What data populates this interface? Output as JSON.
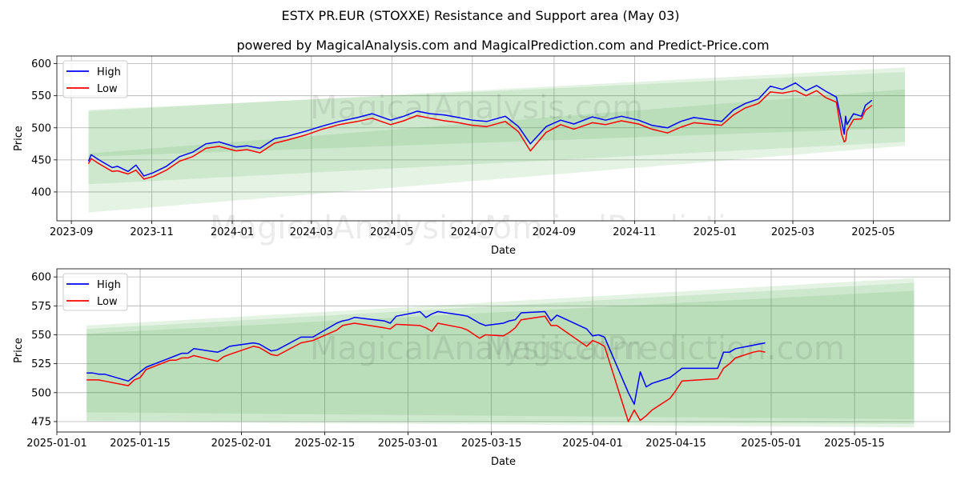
{
  "title": "ESTX PR.EUR (STOXXE) Resistance and Support area (May 03)",
  "subtitle": "powered by MagicalAnalysis.com and MagicalPrediction.com and Predict-Price.com",
  "watermarks": [
    "MagicalAnalysis.com",
    "MagicalPrediction.com"
  ],
  "colors": {
    "high": "#0000ff",
    "low": "#ff0000",
    "band": "#2ca02c"
  },
  "chart_data": [
    {
      "type": "line",
      "xlabel": "Date",
      "ylabel": "Price",
      "ylim": [
        355,
        612
      ],
      "xlim": [
        "2023-08-21",
        "2025-06-28"
      ],
      "grid": true,
      "legend": [
        "High",
        "Low"
      ],
      "legend_position": "upper-left",
      "xticks": [
        "2023-09",
        "2023-11",
        "2024-01",
        "2024-03",
        "2024-05",
        "2024-07",
        "2024-09",
        "2024-11",
        "2025-01",
        "2025-03",
        "2025-05"
      ],
      "yticks": [
        400,
        450,
        500,
        550,
        600
      ],
      "series": [
        {
          "name": "High",
          "x": [
            "2023-09-14",
            "2023-09-16",
            "2023-09-22",
            "2023-10-02",
            "2023-10-06",
            "2023-10-14",
            "2023-10-20",
            "2023-10-26",
            "2023-11-02",
            "2023-11-12",
            "2023-11-22",
            "2023-12-02",
            "2023-12-12",
            "2023-12-22",
            "2024-01-04",
            "2024-01-12",
            "2024-01-22",
            "2024-02-02",
            "2024-02-12",
            "2024-02-26",
            "2024-03-08",
            "2024-03-22",
            "2024-04-05",
            "2024-04-16",
            "2024-04-30",
            "2024-05-10",
            "2024-05-20",
            "2024-05-30",
            "2024-06-10",
            "2024-06-18",
            "2024-07-01",
            "2024-07-12",
            "2024-07-26",
            "2024-08-05",
            "2024-08-14",
            "2024-08-26",
            "2024-09-06",
            "2024-09-16",
            "2024-09-30",
            "2024-10-10",
            "2024-10-22",
            "2024-11-04",
            "2024-11-14",
            "2024-11-26",
            "2024-12-06",
            "2024-12-16",
            "2025-01-06",
            "2025-01-15",
            "2025-01-24",
            "2025-02-03",
            "2025-02-12",
            "2025-02-21",
            "2025-03-03",
            "2025-03-11",
            "2025-03-19",
            "2025-03-26",
            "2025-04-03",
            "2025-04-07",
            "2025-04-09",
            "2025-04-10",
            "2025-04-11",
            "2025-04-16",
            "2025-04-22",
            "2025-04-25",
            "2025-04-30"
          ],
          "values": [
            448,
            458,
            450,
            438,
            440,
            432,
            442,
            425,
            430,
            440,
            455,
            462,
            475,
            478,
            470,
            472,
            468,
            483,
            487,
            495,
            502,
            510,
            516,
            522,
            512,
            518,
            526,
            522,
            520,
            517,
            512,
            510,
            518,
            502,
            475,
            502,
            512,
            506,
            517,
            512,
            518,
            512,
            504,
            500,
            510,
            516,
            510,
            528,
            538,
            545,
            565,
            560,
            570,
            558,
            566,
            557,
            548,
            510,
            490,
            518,
            505,
            522,
            518,
            535,
            543
          ]
        },
        {
          "name": "Low",
          "x": [
            "2023-09-14",
            "2023-09-16",
            "2023-09-22",
            "2023-10-02",
            "2023-10-06",
            "2023-10-14",
            "2023-10-20",
            "2023-10-26",
            "2023-11-02",
            "2023-11-12",
            "2023-11-22",
            "2023-12-02",
            "2023-12-12",
            "2023-12-22",
            "2024-01-04",
            "2024-01-12",
            "2024-01-22",
            "2024-02-02",
            "2024-02-12",
            "2024-02-26",
            "2024-03-08",
            "2024-03-22",
            "2024-04-05",
            "2024-04-16",
            "2024-04-30",
            "2024-05-10",
            "2024-05-20",
            "2024-05-30",
            "2024-06-10",
            "2024-06-18",
            "2024-07-01",
            "2024-07-12",
            "2024-07-26",
            "2024-08-05",
            "2024-08-14",
            "2024-08-26",
            "2024-09-06",
            "2024-09-16",
            "2024-09-30",
            "2024-10-10",
            "2024-10-22",
            "2024-11-04",
            "2024-11-14",
            "2024-11-26",
            "2024-12-06",
            "2024-12-16",
            "2025-01-06",
            "2025-01-15",
            "2025-01-24",
            "2025-02-03",
            "2025-02-12",
            "2025-02-21",
            "2025-03-03",
            "2025-03-11",
            "2025-03-19",
            "2025-03-26",
            "2025-04-03",
            "2025-04-07",
            "2025-04-09",
            "2025-04-10",
            "2025-04-11",
            "2025-04-16",
            "2025-04-22",
            "2025-04-25",
            "2025-04-30"
          ],
          "values": [
            444,
            452,
            444,
            432,
            433,
            428,
            434,
            420,
            424,
            434,
            448,
            455,
            468,
            471,
            464,
            466,
            461,
            476,
            481,
            489,
            497,
            505,
            510,
            515,
            505,
            511,
            519,
            515,
            511,
            509,
            504,
            502,
            510,
            494,
            464,
            493,
            505,
            498,
            508,
            505,
            511,
            506,
            498,
            492,
            501,
            508,
            504,
            520,
            531,
            538,
            556,
            554,
            558,
            550,
            558,
            547,
            540,
            490,
            478,
            480,
            495,
            513,
            514,
            527,
            535
          ]
        }
      ],
      "bands": [
        {
          "upper_start": 528,
          "upper_end": 587,
          "lower_start": 412,
          "lower_end": 478
        },
        {
          "upper_start": 526,
          "upper_end": 594,
          "lower_start": 368,
          "lower_end": 472
        },
        {
          "upper_start": 460,
          "upper_end": 560,
          "lower_start": 455,
          "lower_end": 500
        }
      ]
    },
    {
      "type": "line",
      "xlabel": "Date",
      "ylabel": "Price",
      "ylim": [
        466,
        607
      ],
      "xlim": [
        "2025-01-01",
        "2025-05-31"
      ],
      "grid": true,
      "legend": [
        "High",
        "Low"
      ],
      "legend_position": "upper-left",
      "xticks": [
        "2025-01-01",
        "2025-01-15",
        "2025-02-01",
        "2025-02-15",
        "2025-03-01",
        "2025-03-15",
        "2025-04-01",
        "2025-04-15",
        "2025-05-01",
        "2025-05-15"
      ],
      "yticks": [
        475,
        500,
        525,
        550,
        575,
        600
      ],
      "series": [
        {
          "name": "High",
          "x": [
            "2025-01-06",
            "2025-01-07",
            "2025-01-08",
            "2025-01-09",
            "2025-01-13",
            "2025-01-14",
            "2025-01-15",
            "2025-01-16",
            "2025-01-20",
            "2025-01-21",
            "2025-01-22",
            "2025-01-23",
            "2025-01-24",
            "2025-01-28",
            "2025-01-29",
            "2025-01-30",
            "2025-02-03",
            "2025-02-04",
            "2025-02-05",
            "2025-02-06",
            "2025-02-07",
            "2025-02-11",
            "2025-02-12",
            "2025-02-13",
            "2025-02-17",
            "2025-02-18",
            "2025-02-19",
            "2025-02-20",
            "2025-02-25",
            "2025-02-26",
            "2025-02-27",
            "2025-03-03",
            "2025-03-04",
            "2025-03-05",
            "2025-03-06",
            "2025-03-10",
            "2025-03-11",
            "2025-03-13",
            "2025-03-14",
            "2025-03-17",
            "2025-03-18",
            "2025-03-19",
            "2025-03-20",
            "2025-03-24",
            "2025-03-25",
            "2025-03-26",
            "2025-03-31",
            "2025-04-01",
            "2025-04-02",
            "2025-04-03",
            "2025-04-07",
            "2025-04-08",
            "2025-04-09",
            "2025-04-10",
            "2025-04-11",
            "2025-04-14",
            "2025-04-15",
            "2025-04-16",
            "2025-04-22",
            "2025-04-23",
            "2025-04-24",
            "2025-04-25",
            "2025-04-28",
            "2025-04-29",
            "2025-04-30"
          ],
          "values": [
            517,
            517,
            516,
            516,
            510,
            514,
            518,
            522,
            530,
            532,
            534,
            534,
            538,
            535,
            537,
            540,
            543,
            542,
            539,
            536,
            537,
            548,
            548,
            548,
            560,
            562,
            563,
            565,
            562,
            560,
            566,
            570,
            565,
            568,
            570,
            567,
            566,
            560,
            558,
            560,
            562,
            563,
            569,
            570,
            562,
            567,
            555,
            549,
            550,
            548,
            500,
            490,
            518,
            505,
            508,
            513,
            517,
            521,
            521,
            535,
            535,
            538,
            541,
            542,
            543
          ]
        },
        {
          "name": "Low",
          "x": [
            "2025-01-06",
            "2025-01-07",
            "2025-01-08",
            "2025-01-09",
            "2025-01-13",
            "2025-01-14",
            "2025-01-15",
            "2025-01-16",
            "2025-01-20",
            "2025-01-21",
            "2025-01-22",
            "2025-01-23",
            "2025-01-24",
            "2025-01-28",
            "2025-01-29",
            "2025-01-30",
            "2025-02-03",
            "2025-02-04",
            "2025-02-05",
            "2025-02-06",
            "2025-02-07",
            "2025-02-11",
            "2025-02-12",
            "2025-02-13",
            "2025-02-17",
            "2025-02-18",
            "2025-02-19",
            "2025-02-20",
            "2025-02-25",
            "2025-02-26",
            "2025-02-27",
            "2025-03-03",
            "2025-03-04",
            "2025-03-05",
            "2025-03-06",
            "2025-03-10",
            "2025-03-11",
            "2025-03-13",
            "2025-03-14",
            "2025-03-17",
            "2025-03-18",
            "2025-03-19",
            "2025-03-20",
            "2025-03-24",
            "2025-03-25",
            "2025-03-26",
            "2025-03-31",
            "2025-04-01",
            "2025-04-02",
            "2025-04-03",
            "2025-04-07",
            "2025-04-08",
            "2025-04-09",
            "2025-04-10",
            "2025-04-11",
            "2025-04-14",
            "2025-04-15",
            "2025-04-16",
            "2025-04-22",
            "2025-04-23",
            "2025-04-24",
            "2025-04-25",
            "2025-04-28",
            "2025-04-29",
            "2025-04-30"
          ],
          "values": [
            511,
            511,
            511,
            510,
            506,
            511,
            513,
            520,
            528,
            528,
            530,
            530,
            532,
            527,
            531,
            533,
            540,
            539,
            536,
            533,
            532,
            543,
            544,
            545,
            554,
            558,
            559,
            560,
            556,
            555,
            559,
            558,
            556,
            553,
            560,
            556,
            554,
            547,
            550,
            549,
            552,
            556,
            563,
            566,
            558,
            558,
            540,
            545,
            543,
            540,
            475,
            485,
            476,
            480,
            485,
            495,
            502,
            510,
            512,
            521,
            525,
            530,
            535,
            536,
            535
          ]
        }
      ],
      "bands": [
        {
          "upper_start": 551,
          "upper_end": 588,
          "lower_start": 483,
          "lower_end": 477
        },
        {
          "upper_start": 555,
          "upper_end": 595,
          "lower_start": 476,
          "lower_end": 473
        },
        {
          "upper_start": 558,
          "upper_end": 599,
          "lower_start": 475,
          "lower_end": 470
        }
      ]
    }
  ]
}
